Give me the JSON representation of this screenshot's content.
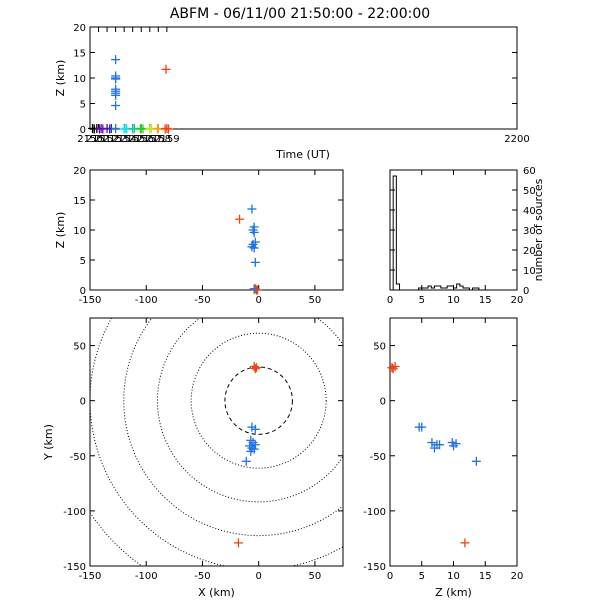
{
  "title": "ABFM - 06/11/00 21:50:00 - 22:00:00",
  "colors": {
    "early": "#000000",
    "violet": "#6a0aa8",
    "indigo": "#3a22b8",
    "blue": "#1f72e8",
    "cyan": "#11e2e4",
    "teal": "#17c79b",
    "green": "#22cc22",
    "yellow_green": "#bfe21a",
    "orange": "#f0a020",
    "red": "#ee4411"
  },
  "chart_data": [
    {
      "id": "time_height",
      "type": "scatter",
      "xlabel": "Time (UT)",
      "ylabel": "Z (km)",
      "xlim": [
        2150,
        2200
      ],
      "ylim": [
        0,
        20
      ],
      "xticks": [
        2150,
        2151,
        2152,
        2153,
        2154,
        2155,
        2156,
        2157,
        2158,
        2159,
        2200
      ],
      "yticks": [
        0,
        5,
        10,
        15,
        20
      ],
      "series": [
        {
          "color": "early",
          "points": [
            [
              2150.3,
              0.1
            ],
            [
              2150.5,
              0.0
            ],
            [
              2150.8,
              0.1
            ]
          ]
        },
        {
          "color": "violet",
          "points": [
            [
              2151.1,
              0.0
            ],
            [
              2151.3,
              0.1
            ],
            [
              2151.5,
              0.0
            ]
          ]
        },
        {
          "color": "indigo",
          "points": [
            [
              2152.0,
              0.1
            ],
            [
              2152.3,
              0.0
            ],
            [
              2152.5,
              0.1
            ]
          ]
        },
        {
          "color": "blue",
          "points": [
            [
              2153.0,
              13.6
            ],
            [
              2153.0,
              10.4
            ],
            [
              2153.0,
              10.0
            ],
            [
              2153.0,
              9.8
            ],
            [
              2153.0,
              7.8
            ],
            [
              2153.0,
              7.4
            ],
            [
              2153.0,
              7.0
            ],
            [
              2153.0,
              6.6
            ],
            [
              2153.0,
              4.6
            ],
            [
              2153.0,
              0.1
            ]
          ]
        },
        {
          "color": "cyan",
          "points": [
            [
              2154.0,
              0.0
            ],
            [
              2154.2,
              0.1
            ],
            [
              2154.3,
              0.0
            ]
          ]
        },
        {
          "color": "teal",
          "points": [
            [
              2155.0,
              0.0
            ],
            [
              2155.2,
              0.1
            ]
          ]
        },
        {
          "color": "green",
          "points": [
            [
              2155.9,
              0.0
            ],
            [
              2156.0,
              0.1
            ],
            [
              2156.2,
              0.0
            ]
          ]
        },
        {
          "color": "yellow_green",
          "points": [
            [
              2157.0,
              0.0
            ],
            [
              2157.2,
              0.1
            ]
          ]
        },
        {
          "color": "orange",
          "points": [
            [
              2157.9,
              0.0
            ],
            [
              2158.0,
              0.1
            ]
          ]
        },
        {
          "color": "red",
          "points": [
            [
              2158.8,
              0.0
            ],
            [
              2159.0,
              0.1
            ],
            [
              2159.2,
              0.0
            ],
            [
              2158.9,
              11.7
            ]
          ]
        }
      ]
    },
    {
      "id": "x_height",
      "type": "scatter",
      "xlabel": "",
      "ylabel": "Z (km)",
      "xlim": [
        -150,
        75
      ],
      "ylim": [
        0,
        20
      ],
      "xticks": [
        -150,
        -100,
        -50,
        0,
        50
      ],
      "yticks": [
        0,
        5,
        10,
        15,
        20
      ],
      "series": [
        {
          "color": "red",
          "points": [
            [
              -17,
              11.8
            ],
            [
              -4,
              0.1
            ],
            [
              -2,
              0.0
            ],
            [
              -3,
              0.2
            ],
            [
              -1,
              0.0
            ]
          ]
        },
        {
          "color": "blue",
          "points": [
            [
              -6,
              13.5
            ],
            [
              -4,
              10.5
            ],
            [
              -5,
              10.0
            ],
            [
              -4,
              9.6
            ],
            [
              -3,
              8.0
            ],
            [
              -5,
              7.6
            ],
            [
              -6,
              7.2
            ],
            [
              -4,
              7.0
            ],
            [
              -3,
              4.6
            ],
            [
              -4,
              0.2
            ]
          ]
        }
      ]
    },
    {
      "id": "altitude_histogram",
      "type": "bar",
      "xlabel": "",
      "ylabel": "number of sources",
      "xlim": [
        0,
        20
      ],
      "ylim": [
        0,
        60
      ],
      "xticks": [
        0,
        5,
        10,
        15,
        20
      ],
      "yticks": [
        0,
        10,
        20,
        30,
        40,
        50,
        60
      ],
      "bin_width": 0.5,
      "values": [
        0,
        57,
        3,
        0,
        0,
        0,
        0,
        0,
        0,
        1,
        1,
        1,
        2,
        1,
        2,
        2,
        1,
        1,
        2,
        2,
        1,
        3,
        2,
        1,
        1,
        0,
        1,
        1,
        0,
        0,
        0,
        0,
        0,
        0,
        0,
        0,
        0,
        0,
        0,
        0
      ]
    },
    {
      "id": "plan_view",
      "type": "scatter",
      "xlabel": "X (km)",
      "ylabel": "Y (km)",
      "xlim": [
        -150,
        75
      ],
      "ylim": [
        -150,
        75
      ],
      "xticks": [
        -150,
        -100,
        -50,
        0,
        50
      ],
      "yticks": [
        -150,
        -100,
        -50,
        0,
        50
      ],
      "range_rings": [
        {
          "radius": 30,
          "style": "dashed"
        },
        {
          "radius": 60,
          "style": "dotted"
        },
        {
          "radius": 90,
          "style": "dotted"
        },
        {
          "radius": 120,
          "style": "dotted"
        },
        {
          "radius": 150,
          "style": "dotted"
        },
        {
          "radius": 180,
          "style": "dotted"
        }
      ],
      "series": [
        {
          "color": "red",
          "points": [
            [
              -3,
              29
            ],
            [
              -4,
              31
            ],
            [
              -2,
              30
            ],
            [
              -18,
              -129
            ]
          ]
        },
        {
          "color": "blue",
          "points": [
            [
              -6,
              -24
            ],
            [
              -3,
              -26
            ],
            [
              -7,
              -36
            ],
            [
              -5,
              -38
            ],
            [
              -3,
              -40
            ],
            [
              -8,
              -41
            ],
            [
              -6,
              -43
            ],
            [
              -4,
              -44
            ],
            [
              -7,
              -46
            ],
            [
              -11,
              -55
            ]
          ]
        }
      ]
    },
    {
      "id": "height_y",
      "type": "scatter",
      "xlabel": "Z (km)",
      "ylabel": "",
      "xlim": [
        0,
        20
      ],
      "ylim": [
        -150,
        75
      ],
      "xticks": [
        0,
        5,
        10,
        15,
        20
      ],
      "yticks": [
        -150,
        -100,
        -50,
        0,
        50
      ],
      "series": [
        {
          "color": "red",
          "points": [
            [
              0.5,
              29
            ],
            [
              0.8,
              31
            ],
            [
              0.3,
              30
            ],
            [
              11.8,
              -129
            ]
          ]
        },
        {
          "color": "blue",
          "points": [
            [
              4.6,
              -24
            ],
            [
              5.0,
              -24
            ],
            [
              6.6,
              -38
            ],
            [
              7.0,
              -43
            ],
            [
              7.4,
              -40
            ],
            [
              7.8,
              -40
            ],
            [
              9.8,
              -38
            ],
            [
              10.0,
              -41
            ],
            [
              10.4,
              -39
            ],
            [
              13.6,
              -55
            ]
          ]
        }
      ]
    }
  ]
}
